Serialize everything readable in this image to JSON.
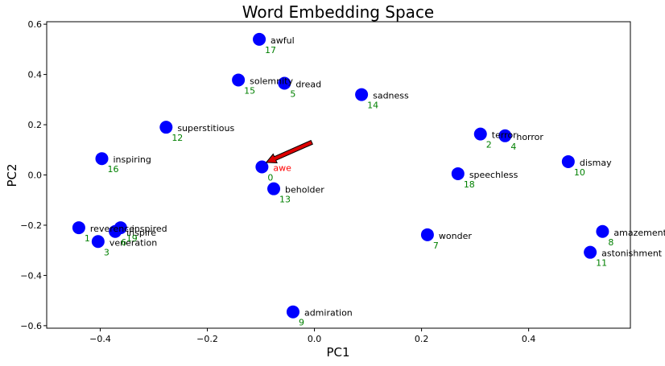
{
  "chart_data": {
    "type": "scatter",
    "title": "Word Embedding Space",
    "xlabel": "PC1",
    "ylabel": "PC2",
    "xlim": [
      -0.5,
      0.59
    ],
    "ylim": [
      -0.61,
      0.61
    ],
    "xticks": [
      -0.4,
      -0.2,
      0.0,
      0.2,
      0.4
    ],
    "yticks": [
      -0.6,
      -0.4,
      -0.2,
      0.0,
      0.2,
      0.4,
      0.6
    ],
    "xtick_labels": [
      "−0.4",
      "−0.2",
      "0.0",
      "0.2",
      "0.4"
    ],
    "ytick_labels": [
      "−0.6",
      "−0.4",
      "−0.2",
      "0.0",
      "0.2",
      "0.4",
      "0.6"
    ],
    "grid": false,
    "point_color": "#0000ff",
    "word_color": "#000000",
    "index_color": "#008000",
    "highlight_color": "#ff0000",
    "arrow": {
      "from": [
        -0.005,
        0.13
      ],
      "to": [
        -0.09,
        0.05
      ],
      "color": "#dd0000"
    },
    "points": [
      {
        "index": "0",
        "word": "awe",
        "x": -0.098,
        "y": 0.032,
        "highlight": true
      },
      {
        "index": "1",
        "word": "reverence",
        "x": -0.44,
        "y": -0.21
      },
      {
        "index": "2",
        "word": "terror",
        "x": 0.31,
        "y": 0.163
      },
      {
        "index": "3",
        "word": "veneration",
        "x": -0.404,
        "y": -0.265
      },
      {
        "index": "4",
        "word": "horror",
        "x": 0.356,
        "y": 0.156
      },
      {
        "index": "5",
        "word": "dread",
        "x": -0.056,
        "y": 0.365
      },
      {
        "index": "6",
        "word": "inspire",
        "x": -0.372,
        "y": -0.225
      },
      {
        "index": "7",
        "word": "wonder",
        "x": 0.211,
        "y": -0.238
      },
      {
        "index": "8",
        "word": "amazement",
        "x": 0.538,
        "y": -0.225
      },
      {
        "index": "9",
        "word": "admiration",
        "x": -0.04,
        "y": -0.545
      },
      {
        "index": "10",
        "word": "dismay",
        "x": 0.474,
        "y": 0.053
      },
      {
        "index": "11",
        "word": "astonishment",
        "x": 0.515,
        "y": -0.308
      },
      {
        "index": "12",
        "word": "superstitious",
        "x": -0.277,
        "y": 0.19
      },
      {
        "index": "13",
        "word": "beholder",
        "x": -0.076,
        "y": -0.055
      },
      {
        "index": "14",
        "word": "sadness",
        "x": 0.088,
        "y": 0.32
      },
      {
        "index": "15",
        "word": "solemnity",
        "x": -0.142,
        "y": 0.378
      },
      {
        "index": "16",
        "word": "inspiring",
        "x": -0.397,
        "y": 0.065
      },
      {
        "index": "17",
        "word": "awful",
        "x": -0.103,
        "y": 0.54
      },
      {
        "index": "18",
        "word": "speechless",
        "x": 0.268,
        "y": 0.005
      },
      {
        "index": "19",
        "word": "inspired",
        "x": -0.362,
        "y": -0.21
      }
    ]
  }
}
